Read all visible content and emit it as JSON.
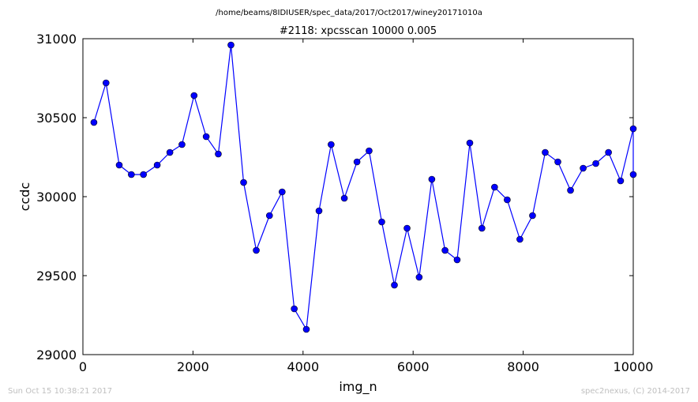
{
  "chart_data": {
    "type": "line",
    "suptitle": "/home/beams/8IDIUSER/spec_data/2017/Oct2017/winey20171010a",
    "title": "#2118: xpcsscan 10000 0.005",
    "xlabel": "img_n",
    "ylabel": "ccdc",
    "xlim": [
      0,
      10000
    ],
    "ylim": [
      29000,
      31000
    ],
    "xticks": [
      "0",
      "2000",
      "4000",
      "6000",
      "8000",
      "10000"
    ],
    "yticks": [
      "29000",
      "29500",
      "30000",
      "30500",
      "31000"
    ],
    "grid": false,
    "legend": null,
    "line_color": "#0000ff",
    "marker": "circle",
    "series": [
      {
        "x": [
          200,
          420,
          660,
          880,
          1100,
          1350,
          1580,
          1800,
          2020,
          2240,
          2460,
          2690,
          2920,
          3150,
          3390,
          3620,
          3840,
          4060,
          4290,
          4510,
          4750,
          4980,
          5200,
          5430,
          5660,
          5890,
          6110,
          6340,
          6580,
          6800,
          7030,
          7250,
          7480,
          7710,
          7940,
          8170,
          8400,
          8630,
          8860,
          9090,
          9320,
          9550,
          9770,
          10000,
          10000
        ],
        "y": [
          30470,
          30720,
          30200,
          30140,
          30140,
          30200,
          30280,
          30330,
          30640,
          30380,
          30270,
          30960,
          30090,
          29660,
          29880,
          30030,
          29290,
          29160,
          29910,
          30330,
          29990,
          30220,
          30290,
          29840,
          29440,
          29800,
          29490,
          30110,
          29660,
          29600,
          30340,
          29800,
          30060,
          29980,
          29730,
          29880,
          30280,
          30220,
          30040,
          30180,
          30210,
          30280,
          30100,
          30430,
          30140
        ]
      }
    ]
  },
  "footer": {
    "timestamp": "Sun Oct 15 10:38:21 2017",
    "credit": "spec2nexus, (C) 2014-2017"
  }
}
